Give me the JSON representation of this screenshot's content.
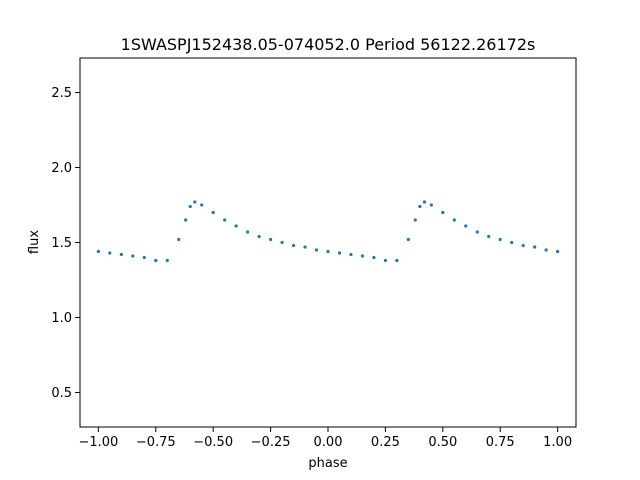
{
  "chart_data": {
    "type": "scatter",
    "title": "1SWASPJ152438.05-074052.0 Period 56122.26172s",
    "xlabel": "phase",
    "ylabel": "flux",
    "xlim": [
      -1.08,
      1.08
    ],
    "ylim": [
      0.27,
      2.73
    ],
    "xticks": [
      -1.0,
      -0.75,
      -0.5,
      -0.25,
      0.0,
      0.25,
      0.5,
      0.75,
      1.0
    ],
    "xtick_labels": [
      "−1.00",
      "−0.75",
      "−0.50",
      "−0.25",
      "0.00",
      "0.25",
      "0.50",
      "0.75",
      "1.00"
    ],
    "yticks": [
      0.5,
      1.0,
      1.5,
      2.0,
      2.5
    ],
    "ytick_labels": [
      "0.5",
      "1.0",
      "1.5",
      "2.0",
      "2.5"
    ],
    "grid": false,
    "marker_color": "#1f77b4",
    "series": [
      {
        "x": [
          -1.0,
          -0.95,
          -0.9,
          -0.85,
          -0.8,
          -0.75,
          -0.7,
          -0.65,
          -0.62,
          -0.6,
          -0.58,
          -0.55,
          -0.5,
          -0.45,
          -0.4,
          -0.35,
          -0.3,
          -0.25,
          -0.2,
          -0.15,
          -0.1,
          -0.05,
          0.0,
          0.05,
          0.1,
          0.15,
          0.2,
          0.25,
          0.3,
          0.35,
          0.38,
          0.4,
          0.42,
          0.45,
          0.5,
          0.55,
          0.6,
          0.65,
          0.7,
          0.75,
          0.8,
          0.85,
          0.9,
          0.95,
          1.0
        ],
        "y": [
          1.44,
          1.43,
          1.42,
          1.41,
          1.4,
          1.38,
          1.38,
          1.52,
          1.65,
          1.74,
          1.77,
          1.75,
          1.7,
          1.65,
          1.61,
          1.57,
          1.54,
          1.52,
          1.5,
          1.48,
          1.47,
          1.45,
          1.44,
          1.43,
          1.42,
          1.41,
          1.4,
          1.38,
          1.38,
          1.52,
          1.65,
          1.74,
          1.77,
          1.75,
          1.7,
          1.65,
          1.61,
          1.57,
          1.54,
          1.52,
          1.5,
          1.48,
          1.47,
          1.45,
          1.44
        ]
      }
    ]
  }
}
